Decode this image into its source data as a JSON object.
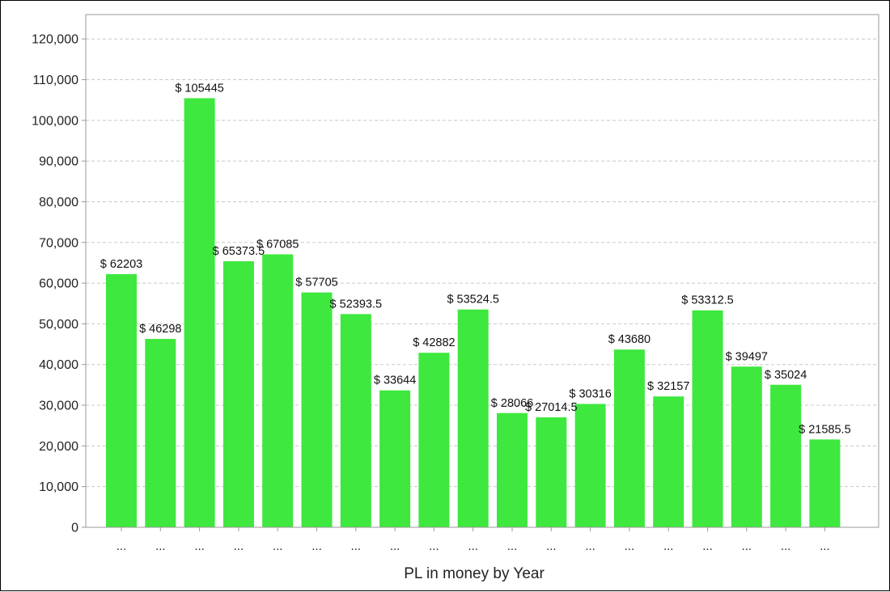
{
  "chart_data": {
    "type": "bar",
    "title": "",
    "xlabel": "PL in money by Year",
    "ylabel": "",
    "ylim": [
      0,
      126000
    ],
    "yticks": [
      0,
      10000,
      20000,
      30000,
      40000,
      50000,
      60000,
      70000,
      80000,
      90000,
      100000,
      110000,
      120000
    ],
    "ytick_labels": [
      "0",
      "10,000",
      "20,000",
      "30,000",
      "40,000",
      "50,000",
      "60,000",
      "70,000",
      "80,000",
      "90,000",
      "100,000",
      "110,000",
      "120,000"
    ],
    "grid": "horizontal dashed",
    "legend": "none",
    "bar_color": "#3ee83e",
    "categories": [
      "...",
      "...",
      "...",
      "...",
      "...",
      "...",
      "...",
      "...",
      "...",
      "...",
      "...",
      "...",
      "...",
      "...",
      "...",
      "...",
      "...",
      "...",
      "..."
    ],
    "values": [
      62203,
      46298,
      105445,
      65373.5,
      67085,
      57705,
      52393.5,
      33644,
      42882,
      53524.5,
      28066,
      27014.5,
      30316,
      43680,
      32157,
      53312.5,
      39497,
      35024,
      21585.5
    ],
    "data_labels": [
      "$ 62203",
      "$ 46298",
      "$ 105445",
      "$ 65373.5",
      "$ 67085",
      "$ 57705",
      "$ 52393.5",
      "$ 33644",
      "$ 42882",
      "$ 53524.5",
      "$ 28066",
      "$ 27014.5",
      "$ 30316",
      "$ 43680",
      "$ 32157",
      "$ 53312.5",
      "$ 39497",
      "$ 35024",
      "$ 21585.5"
    ]
  }
}
